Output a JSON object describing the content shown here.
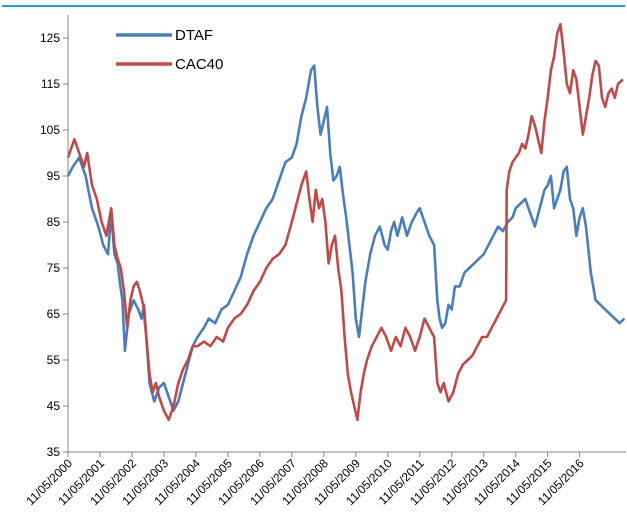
{
  "chart_data": {
    "type": "line",
    "title": "",
    "xlabel": "",
    "ylabel": "",
    "ylim": [
      35,
      130
    ],
    "yticks": [
      35,
      45,
      55,
      65,
      75,
      85,
      95,
      105,
      115,
      125
    ],
    "xticks": [
      "11/05/2000",
      "11/05/2001",
      "11/05/2002",
      "11/05/2003",
      "11/05/2004",
      "11/05/2005",
      "11/05/2006",
      "11/05/2007",
      "11/05/2008",
      "11/05/2009",
      "11/05/2010",
      "11/05/2011",
      "11/05/2012",
      "11/05/2013",
      "11/05/2014",
      "11/05/2015",
      "11/05/2016"
    ],
    "xlim": [
      2000.0,
      2017.45
    ],
    "grid": false,
    "legend_position": "top-left",
    "series": [
      {
        "name": "DTAF",
        "color": "#4a7ebb",
        "x": [
          2000.0,
          2000.15,
          2000.35,
          2000.55,
          2000.75,
          2000.95,
          2001.1,
          2001.25,
          2001.35,
          2001.45,
          2001.55,
          2001.62,
          2001.7,
          2001.78,
          2001.9,
          2002.05,
          2002.2,
          2002.3,
          2002.38,
          2002.45,
          2002.55,
          2002.62,
          2002.7,
          2002.85,
          2003.0,
          2003.15,
          2003.3,
          2003.45,
          2003.6,
          2003.75,
          2003.9,
          2004.05,
          2004.25,
          2004.4,
          2004.6,
          2004.8,
          2005.0,
          2005.2,
          2005.4,
          2005.6,
          2005.8,
          2006.0,
          2006.2,
          2006.4,
          2006.6,
          2006.8,
          2007.0,
          2007.15,
          2007.3,
          2007.45,
          2007.6,
          2007.7,
          2007.8,
          2007.9,
          2008.0,
          2008.1,
          2008.2,
          2008.3,
          2008.4,
          2008.5,
          2008.6,
          2008.7,
          2008.8,
          2008.9,
          2009.0,
          2009.1,
          2009.2,
          2009.3,
          2009.45,
          2009.6,
          2009.75,
          2009.9,
          2010.0,
          2010.1,
          2010.2,
          2010.3,
          2010.45,
          2010.6,
          2010.75,
          2010.9,
          2011.0,
          2011.15,
          2011.3,
          2011.45,
          2011.55,
          2011.62,
          2011.7,
          2011.8,
          2011.9,
          2012.0,
          2012.1,
          2012.25,
          2012.4,
          2012.55,
          2012.7,
          2012.85,
          2013.0,
          2013.15,
          2013.3,
          2013.45,
          2013.6,
          2013.75,
          2013.9,
          2014.0,
          2014.15,
          2014.3,
          2014.45,
          2014.6,
          2014.75,
          2014.9,
          2015.0,
          2015.1,
          2015.2,
          2015.3,
          2015.4,
          2015.5,
          2015.6,
          2015.7,
          2015.8,
          2015.9,
          2016.0,
          2016.1,
          2016.2,
          2016.35,
          2016.5,
          2016.65,
          2016.8,
          2016.95,
          2017.1,
          2017.25,
          2017.4
        ],
        "y": [
          95,
          97,
          99,
          95,
          88,
          84,
          80,
          78,
          87,
          78,
          76,
          72,
          68,
          57,
          65,
          68,
          66,
          64,
          67,
          60,
          50,
          48,
          46,
          49,
          50,
          47,
          44,
          46,
          50,
          54,
          58,
          60,
          62,
          64,
          63,
          66,
          67,
          70,
          73,
          78,
          82,
          85,
          88,
          90,
          94,
          98,
          99,
          102,
          108,
          112,
          118,
          119,
          110,
          104,
          107,
          110,
          100,
          94,
          95,
          97,
          91,
          86,
          80,
          74,
          64,
          60,
          66,
          72,
          78,
          82,
          84,
          80,
          79,
          83,
          85,
          82,
          86,
          82,
          85,
          87,
          88,
          85,
          82,
          80,
          68,
          64,
          62,
          63,
          67,
          66,
          71,
          71,
          74,
          75,
          76,
          77,
          78,
          80,
          82,
          84,
          83,
          85,
          86,
          88,
          89,
          90,
          87,
          84,
          88,
          92,
          93,
          95,
          88,
          90,
          92,
          96,
          97,
          90,
          88,
          82,
          86,
          88,
          84,
          74,
          68,
          67,
          66,
          65,
          64,
          63,
          64
        ]
      },
      {
        "name": "CAC40",
        "color": "#be4b48",
        "x": [
          2000.0,
          2000.1,
          2000.2,
          2000.35,
          2000.5,
          2000.6,
          2000.75,
          2000.9,
          2001.05,
          2001.2,
          2001.35,
          2001.45,
          2001.55,
          2001.65,
          2001.75,
          2001.85,
          2001.95,
          2002.05,
          2002.15,
          2002.25,
          2002.35,
          2002.45,
          2002.55,
          2002.65,
          2002.75,
          2002.85,
          2003.0,
          2003.15,
          2003.3,
          2003.45,
          2003.6,
          2003.75,
          2003.9,
          2004.05,
          2004.25,
          2004.45,
          2004.65,
          2004.85,
          2005.0,
          2005.2,
          2005.4,
          2005.6,
          2005.8,
          2006.0,
          2006.2,
          2006.4,
          2006.6,
          2006.8,
          2007.0,
          2007.15,
          2007.3,
          2007.45,
          2007.55,
          2007.65,
          2007.75,
          2007.85,
          2007.95,
          2008.05,
          2008.15,
          2008.25,
          2008.35,
          2008.45,
          2008.55,
          2008.65,
          2008.75,
          2008.85,
          2008.95,
          2009.05,
          2009.15,
          2009.25,
          2009.35,
          2009.5,
          2009.65,
          2009.8,
          2009.95,
          2010.1,
          2010.25,
          2010.4,
          2010.55,
          2010.7,
          2010.85,
          2011.0,
          2011.15,
          2011.3,
          2011.45,
          2011.55,
          2011.65,
          2011.75,
          2011.9,
          2012.05,
          2012.2,
          2012.35,
          2012.5,
          2012.65,
          2012.8,
          2012.95,
          2013.1,
          2013.25,
          2013.4,
          2013.55,
          2013.7,
          2013.72,
          2013.8,
          2013.9,
          2014.0,
          2014.1,
          2014.2,
          2014.3,
          2014.4,
          2014.5,
          2014.6,
          2014.7,
          2014.8,
          2014.9,
          2015.0,
          2015.1,
          2015.2,
          2015.3,
          2015.4,
          2015.5,
          2015.6,
          2015.7,
          2015.8,
          2015.9,
          2016.0,
          2016.1,
          2016.2,
          2016.3,
          2016.4,
          2016.5,
          2016.6,
          2016.7,
          2016.8,
          2016.9,
          2017.0,
          2017.1,
          2017.2,
          2017.35
        ],
        "y": [
          99,
          101,
          103,
          100,
          97,
          100,
          93,
          90,
          85,
          82,
          88,
          80,
          77,
          75,
          70,
          62,
          68,
          71,
          72,
          70,
          67,
          60,
          52,
          48,
          50,
          47,
          44,
          42,
          45,
          50,
          53,
          55,
          58,
          58,
          59,
          58,
          60,
          59,
          62,
          64,
          65,
          67,
          70,
          72,
          75,
          77,
          78,
          80,
          85,
          89,
          93,
          96,
          90,
          85,
          92,
          88,
          90,
          85,
          76,
          80,
          82,
          75,
          70,
          60,
          52,
          48,
          45,
          42,
          48,
          52,
          55,
          58,
          60,
          62,
          60,
          57,
          60,
          58,
          62,
          60,
          57,
          60,
          64,
          62,
          60,
          50,
          48,
          50,
          46,
          48,
          52,
          54,
          55,
          56,
          58,
          60,
          60,
          62,
          64,
          66,
          68,
          92,
          96,
          98,
          99,
          100,
          102,
          101,
          104,
          108,
          106,
          103,
          100,
          107,
          112,
          118,
          121,
          126,
          128,
          122,
          115,
          113,
          118,
          116,
          110,
          104,
          108,
          112,
          117,
          120,
          119,
          112,
          110,
          113,
          114,
          112,
          115,
          116
        ]
      }
    ]
  }
}
